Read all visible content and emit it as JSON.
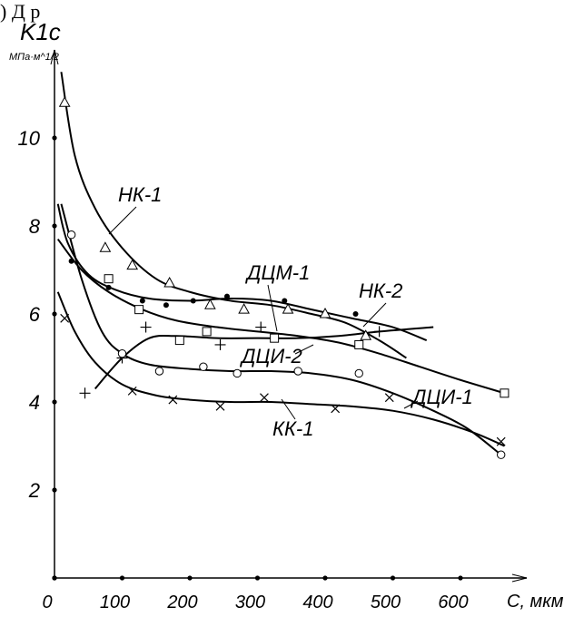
{
  "header_text": ") Д                    р",
  "chart_data": {
    "type": "scatter",
    "ylabel": "K1c",
    "ylabel_unit": "МПа·м^1/2",
    "xlabel": "C, мкм",
    "xlim": [
      0,
      680
    ],
    "ylim": [
      0,
      12
    ],
    "x_ticks": [
      0,
      100,
      200,
      300,
      400,
      500,
      600
    ],
    "y_ticks": [
      2,
      4,
      6,
      8,
      10
    ],
    "x_tick_labels": [
      "0",
      "100",
      "200",
      "300",
      "400",
      "500",
      "600"
    ],
    "y_tick_labels": [
      "2",
      "4",
      "6",
      "8",
      "10"
    ],
    "axis_dot_x": [
      0,
      100,
      200,
      300,
      400,
      500,
      600
    ],
    "axis_dot_y": [
      0,
      2,
      4,
      6,
      8,
      10
    ],
    "series": [
      {
        "name": "НК-1",
        "marker": "triangle",
        "points": [
          [
            15,
            10.8
          ],
          [
            75,
            7.5
          ],
          [
            115,
            7.1
          ],
          [
            170,
            6.7
          ],
          [
            230,
            6.2
          ],
          [
            280,
            6.1
          ],
          [
            345,
            6.1
          ],
          [
            400,
            6.0
          ],
          [
            460,
            5.5
          ]
        ],
        "curve": [
          [
            10,
            11.5
          ],
          [
            30,
            9.6
          ],
          [
            60,
            8.4
          ],
          [
            100,
            7.5
          ],
          [
            150,
            6.8
          ],
          [
            200,
            6.5
          ],
          [
            260,
            6.3
          ],
          [
            320,
            6.2
          ],
          [
            380,
            6.0
          ],
          [
            430,
            5.8
          ],
          [
            480,
            5.4
          ],
          [
            520,
            5.0
          ]
        ]
      },
      {
        "name": "НК-2",
        "marker": "dot",
        "points": [
          [
            25,
            7.2
          ],
          [
            80,
            6.6
          ],
          [
            130,
            6.3
          ],
          [
            165,
            6.2
          ],
          [
            205,
            6.3
          ],
          [
            255,
            6.4
          ],
          [
            340,
            6.3
          ],
          [
            445,
            6.0
          ]
        ],
        "curve": [
          [
            5,
            8.5
          ],
          [
            20,
            7.6
          ],
          [
            50,
            6.9
          ],
          [
            90,
            6.55
          ],
          [
            140,
            6.35
          ],
          [
            200,
            6.3
          ],
          [
            260,
            6.35
          ],
          [
            320,
            6.3
          ],
          [
            380,
            6.1
          ],
          [
            440,
            5.9
          ],
          [
            500,
            5.7
          ],
          [
            550,
            5.4
          ]
        ]
      },
      {
        "name": "ДЦМ-1",
        "marker": "square",
        "points": [
          [
            80,
            6.8
          ],
          [
            125,
            6.1
          ],
          [
            185,
            5.4
          ],
          [
            225,
            5.6
          ],
          [
            325,
            5.45
          ],
          [
            450,
            5.3
          ],
          [
            665,
            4.2
          ]
        ],
        "curve": [
          [
            5,
            7.7
          ],
          [
            40,
            7.0
          ],
          [
            80,
            6.5
          ],
          [
            130,
            6.1
          ],
          [
            180,
            5.85
          ],
          [
            240,
            5.7
          ],
          [
            300,
            5.6
          ],
          [
            360,
            5.5
          ],
          [
            420,
            5.35
          ],
          [
            480,
            5.1
          ],
          [
            540,
            4.8
          ],
          [
            600,
            4.5
          ],
          [
            665,
            4.2
          ]
        ]
      },
      {
        "name": "ДЦИ-2",
        "marker": "plus",
        "points": [
          [
            45,
            4.2
          ],
          [
            100,
            5.0
          ],
          [
            135,
            5.7
          ],
          [
            245,
            5.3
          ],
          [
            305,
            5.7
          ],
          [
            480,
            5.6
          ]
        ],
        "curve": [
          [
            60,
            4.3
          ],
          [
            100,
            5.0
          ],
          [
            140,
            5.45
          ],
          [
            180,
            5.5
          ],
          [
            240,
            5.45
          ],
          [
            300,
            5.45
          ],
          [
            360,
            5.45
          ],
          [
            420,
            5.5
          ],
          [
            480,
            5.6
          ],
          [
            560,
            5.7
          ]
        ]
      },
      {
        "name": "ДЦИ-1",
        "marker": "circle",
        "points": [
          [
            25,
            7.8
          ],
          [
            100,
            5.1
          ],
          [
            155,
            4.7
          ],
          [
            220,
            4.8
          ],
          [
            270,
            4.65
          ],
          [
            360,
            4.7
          ],
          [
            450,
            4.65
          ],
          [
            660,
            2.8
          ]
        ],
        "curve": [
          [
            10,
            8.5
          ],
          [
            40,
            6.8
          ],
          [
            70,
            5.6
          ],
          [
            100,
            5.1
          ],
          [
            140,
            4.85
          ],
          [
            200,
            4.75
          ],
          [
            260,
            4.7
          ],
          [
            320,
            4.7
          ],
          [
            380,
            4.65
          ],
          [
            440,
            4.5
          ],
          [
            500,
            4.2
          ],
          [
            560,
            3.8
          ],
          [
            610,
            3.4
          ],
          [
            660,
            2.8
          ]
        ]
      },
      {
        "name": "КК-1",
        "marker": "cross",
        "points": [
          [
            15,
            5.9
          ],
          [
            115,
            4.25
          ],
          [
            175,
            4.05
          ],
          [
            245,
            3.9
          ],
          [
            310,
            4.1
          ],
          [
            415,
            3.85
          ],
          [
            495,
            4.1
          ],
          [
            660,
            3.1
          ]
        ],
        "curve": [
          [
            5,
            6.5
          ],
          [
            30,
            5.6
          ],
          [
            60,
            4.9
          ],
          [
            100,
            4.4
          ],
          [
            150,
            4.15
          ],
          [
            200,
            4.05
          ],
          [
            260,
            4.0
          ],
          [
            320,
            4.0
          ],
          [
            380,
            3.95
          ],
          [
            440,
            3.9
          ],
          [
            500,
            3.8
          ],
          [
            560,
            3.6
          ],
          [
            620,
            3.3
          ],
          [
            665,
            3.0
          ]
        ]
      }
    ],
    "curve_labels": [
      {
        "series": "НК-1",
        "text": "НК-1"
      },
      {
        "series": "НК-2",
        "text": "НК-2"
      },
      {
        "series": "ДЦМ-1",
        "text": "ДЦМ-1"
      },
      {
        "series": "ДЦИ-2",
        "text": "ДЦИ-2"
      },
      {
        "series": "ДЦИ-1",
        "text": "ДЦИ-1"
      },
      {
        "series": "КК-1",
        "text": "КК-1"
      }
    ],
    "grid": false,
    "legend": "none"
  }
}
